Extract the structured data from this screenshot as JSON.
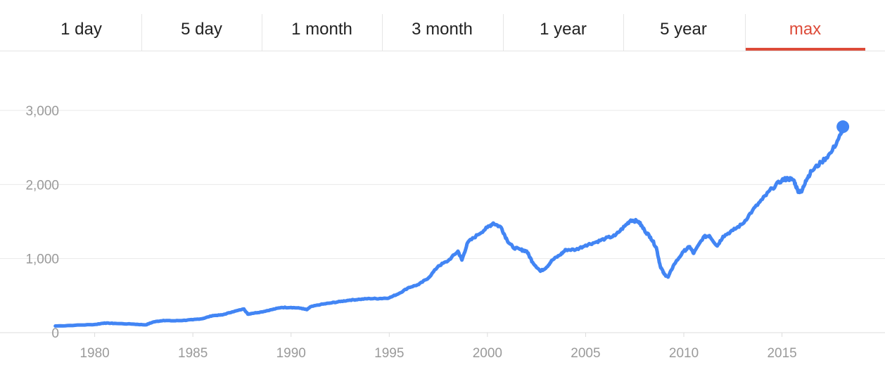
{
  "tabs": {
    "items": [
      {
        "label": "1 day"
      },
      {
        "label": "5 day"
      },
      {
        "label": "1 month"
      },
      {
        "label": "3 month"
      },
      {
        "label": "1 year"
      },
      {
        "label": "5 year"
      },
      {
        "label": "max"
      }
    ],
    "active_index": 6,
    "active_color": "#dd4b39"
  },
  "chart_data": {
    "type": "line",
    "title": "",
    "xlabel": "",
    "ylabel": "",
    "grid": true,
    "line_color": "#4285f4",
    "xlim": [
      1977.4,
      2019.6
    ],
    "ylim": [
      0,
      3000
    ],
    "y_ticks": [
      {
        "value": 0,
        "label": "0"
      },
      {
        "value": 1000,
        "label": "1,000"
      },
      {
        "value": 2000,
        "label": "2,000"
      },
      {
        "value": 3000,
        "label": "3,000"
      }
    ],
    "x_ticks": [
      {
        "value": 1980,
        "label": "1980"
      },
      {
        "value": 1985,
        "label": "1985"
      },
      {
        "value": 1990,
        "label": "1990"
      },
      {
        "value": 1995,
        "label": "1995"
      },
      {
        "value": 2000,
        "label": "2000"
      },
      {
        "value": 2005,
        "label": "2005"
      },
      {
        "value": 2010,
        "label": "2010"
      },
      {
        "value": 2015,
        "label": "2015"
      }
    ],
    "series": [
      {
        "x": [
          1978.0,
          1979.0,
          1980.0,
          1980.5,
          1981.0,
          1982.0,
          1982.6,
          1983.0,
          1983.5,
          1984.0,
          1984.5,
          1985.0,
          1985.5,
          1986.0,
          1986.5,
          1987.0,
          1987.6,
          1987.8,
          1988.0,
          1988.5,
          1989.0,
          1989.5,
          1990.0,
          1990.5,
          1990.8,
          1991.0,
          1991.5,
          1992.0,
          1992.5,
          1993.0,
          1993.5,
          1994.0,
          1994.5,
          1995.0,
          1995.5,
          1996.0,
          1996.5,
          1997.0,
          1997.5,
          1998.0,
          1998.5,
          1998.7,
          1999.0,
          1999.5,
          2000.0,
          2000.3,
          2000.7,
          2001.0,
          2001.3,
          2001.7,
          2002.0,
          2002.3,
          2002.7,
          2003.0,
          2003.3,
          2003.7,
          2004.0,
          2004.5,
          2005.0,
          2005.5,
          2006.0,
          2006.5,
          2007.0,
          2007.3,
          2007.7,
          2008.0,
          2008.3,
          2008.6,
          2008.8,
          2009.0,
          2009.2,
          2009.5,
          2010.0,
          2010.3,
          2010.5,
          2011.0,
          2011.3,
          2011.7,
          2012.0,
          2012.5,
          2013.0,
          2013.5,
          2014.0,
          2014.5,
          2015.0,
          2015.3,
          2015.6,
          2015.8,
          2016.0,
          2016.2,
          2016.5,
          2017.0,
          2017.5,
          2018.0,
          2018.1
        ],
        "values": [
          90,
          100,
          110,
          130,
          125,
          115,
          105,
          145,
          165,
          160,
          165,
          175,
          190,
          230,
          240,
          280,
          320,
          250,
          260,
          280,
          310,
          340,
          340,
          330,
          310,
          350,
          380,
          400,
          420,
          440,
          450,
          460,
          460,
          470,
          530,
          610,
          650,
          740,
          900,
          970,
          1100,
          980,
          1220,
          1320,
          1420,
          1480,
          1420,
          1250,
          1150,
          1120,
          1100,
          950,
          830,
          880,
          980,
          1050,
          1120,
          1120,
          1180,
          1220,
          1270,
          1310,
          1440,
          1520,
          1500,
          1380,
          1290,
          1150,
          900,
          790,
          750,
          920,
          1100,
          1160,
          1070,
          1290,
          1310,
          1170,
          1300,
          1380,
          1470,
          1650,
          1800,
          1950,
          2060,
          2080,
          2060,
          1920,
          1900,
          2050,
          2180,
          2300,
          2430,
          2680,
          2780
        ]
      }
    ]
  }
}
